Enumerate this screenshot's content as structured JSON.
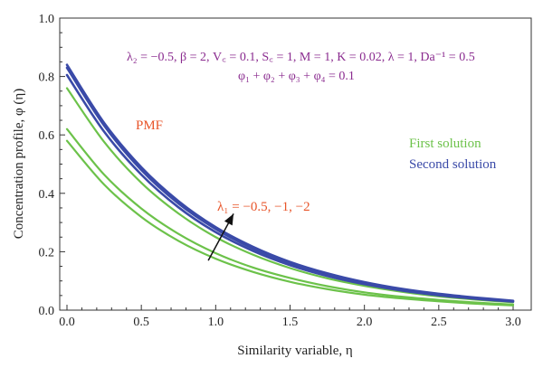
{
  "chart_data": {
    "type": "line",
    "xlabel": "Similarity variable, η",
    "ylabel": "Concentration profile, φ (η)",
    "xlim": [
      0.0,
      3.0
    ],
    "ylim": [
      0.0,
      1.0
    ],
    "x_ticks": [
      "0.0",
      "0.5",
      "1.0",
      "1.5",
      "2.0",
      "2.5",
      "3.0"
    ],
    "y_ticks": [
      "0.0",
      "0.2",
      "0.4",
      "0.6",
      "0.8",
      "1.0"
    ],
    "grid": false,
    "parameters_line1": "λ₂ = −0.5, β = 2, V꜀ = 0.1, S꜀ = 1, M = 1, K = 0.02, λ = 1, Da⁻¹ = 0.5",
    "parameters_line2": "φ₁ + φ₂ + φ₃ + φ₄ = 0.1",
    "pmf_label": "PMF",
    "lambda_label": "λ₁ = −0.5, −1, −2",
    "legend": [
      {
        "label": "First solution",
        "color": "#6cc24a"
      },
      {
        "label": "Second solution",
        "color": "#3a4aa8"
      }
    ],
    "colors": {
      "first": "#6cc24a",
      "second": "#3a4aa8",
      "params": "#8a2b8f",
      "pmf": "#e8552a",
      "lambda": "#e8552a"
    },
    "series": [
      {
        "name": "First solution",
        "lambda1": -0.5,
        "x": [
          0,
          0.25,
          0.5,
          0.75,
          1,
          1.25,
          1.5,
          1.75,
          2,
          2.25,
          2.5,
          2.75,
          3
        ],
        "values": [
          0.58,
          0.43,
          0.319,
          0.237,
          0.176,
          0.131,
          0.097,
          0.072,
          0.053,
          0.04,
          0.03,
          0.022,
          0.016
        ]
      },
      {
        "name": "First solution",
        "lambda1": -1,
        "x": [
          0,
          0.25,
          0.5,
          0.75,
          1,
          1.25,
          1.5,
          1.75,
          2,
          2.25,
          2.5,
          2.75,
          3
        ],
        "values": [
          0.62,
          0.464,
          0.348,
          0.261,
          0.195,
          0.146,
          0.11,
          0.082,
          0.061,
          0.046,
          0.035,
          0.026,
          0.019
        ]
      },
      {
        "name": "First solution",
        "lambda1": -2,
        "x": [
          0,
          0.25,
          0.5,
          0.75,
          1,
          1.25,
          1.5,
          1.75,
          2,
          2.25,
          2.5,
          2.75,
          3
        ],
        "values": [
          0.76,
          0.576,
          0.436,
          0.331,
          0.25,
          0.19,
          0.144,
          0.109,
          0.083,
          0.063,
          0.047,
          0.036,
          0.027
        ]
      },
      {
        "name": "Second solution",
        "lambda1": -0.5,
        "x": [
          0,
          0.25,
          0.5,
          0.75,
          1,
          1.25,
          1.5,
          1.75,
          2,
          2.25,
          2.5,
          2.75,
          3
        ],
        "values": [
          0.805,
          0.611,
          0.464,
          0.352,
          0.267,
          0.203,
          0.154,
          0.117,
          0.089,
          0.067,
          0.051,
          0.039,
          0.029
        ]
      },
      {
        "name": "Second solution",
        "lambda1": -1,
        "x": [
          0,
          0.25,
          0.5,
          0.75,
          1,
          1.25,
          1.5,
          1.75,
          2,
          2.25,
          2.5,
          2.75,
          3
        ],
        "values": [
          0.83,
          0.632,
          0.48,
          0.365,
          0.278,
          0.211,
          0.161,
          0.122,
          0.093,
          0.071,
          0.054,
          0.041,
          0.031
        ]
      },
      {
        "name": "Second solution",
        "lambda1": -2,
        "x": [
          0,
          0.25,
          0.5,
          0.75,
          1,
          1.25,
          1.5,
          1.75,
          2,
          2.25,
          2.5,
          2.75,
          3
        ],
        "values": [
          0.84,
          0.641,
          0.489,
          0.373,
          0.284,
          0.217,
          0.165,
          0.126,
          0.096,
          0.073,
          0.056,
          0.043,
          0.032
        ]
      }
    ],
    "arrow": {
      "from": [
        0.95,
        0.17
      ],
      "to": [
        1.12,
        0.33
      ]
    }
  }
}
